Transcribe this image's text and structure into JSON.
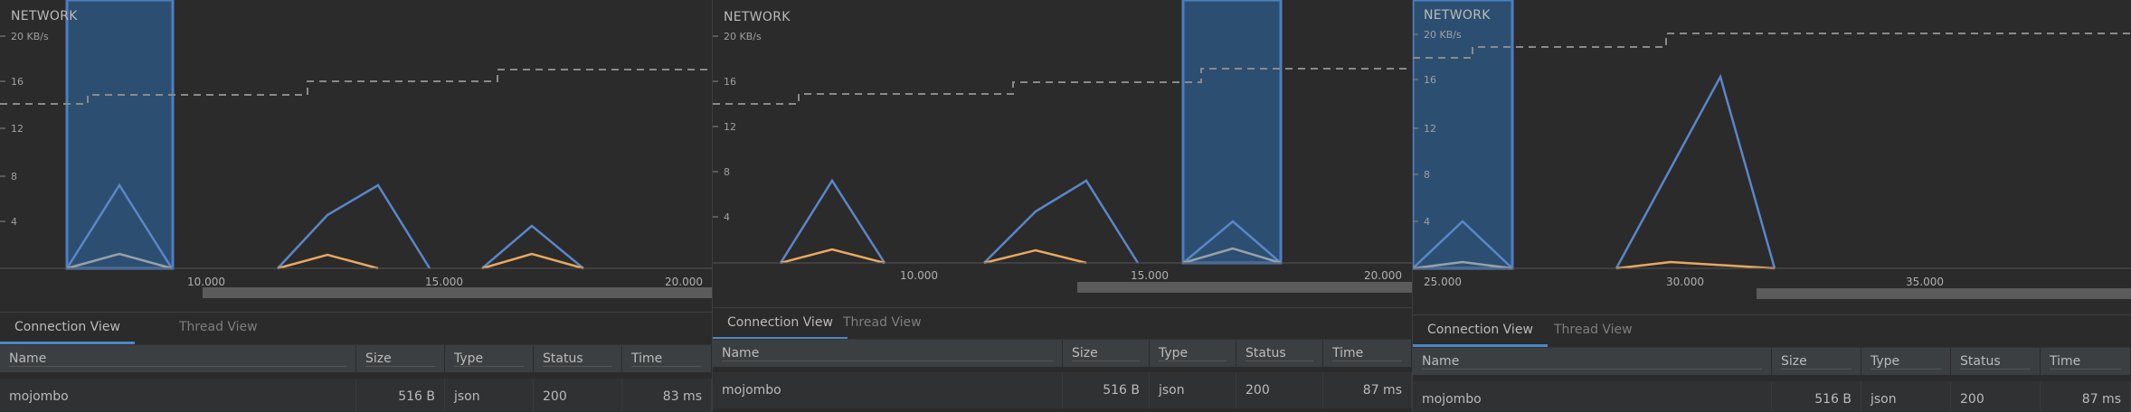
{
  "panels": [
    {
      "title": "NETWORK",
      "y_unit_label": "20 KB/s",
      "y_ticks": [
        "16",
        "12",
        "8",
        "4"
      ],
      "x_ticks": [
        "10.000",
        "15.000",
        "20.000"
      ],
      "tabs": [
        {
          "label": "Connection View",
          "active": true
        },
        {
          "label": "Thread View",
          "active": false
        }
      ],
      "columns": [
        "Name",
        "Size",
        "Type",
        "Status",
        "Time"
      ],
      "rows": [
        {
          "name": "mojombo",
          "size": "516 B",
          "type": "json",
          "status": "200",
          "time": "83 ms"
        }
      ]
    },
    {
      "title": "NETWORK",
      "y_unit_label": "20 KB/s",
      "y_ticks": [
        "16",
        "12",
        "8",
        "4"
      ],
      "x_ticks": [
        "10.000",
        "15.000",
        "20.000"
      ],
      "tabs": [
        {
          "label": "Connection View",
          "active": true
        },
        {
          "label": "Thread View",
          "active": false
        }
      ],
      "columns": [
        "Name",
        "Size",
        "Type",
        "Status",
        "Time"
      ],
      "rows": [
        {
          "name": "mojombo",
          "size": "516 B",
          "type": "json",
          "status": "200",
          "time": "87 ms"
        }
      ]
    },
    {
      "title": "NETWORK",
      "y_unit_label": "20 KB/s",
      "y_ticks": [
        "16",
        "12",
        "8",
        "4"
      ],
      "x_ticks": [
        "25.000",
        "30.000",
        "35.000"
      ],
      "tabs": [
        {
          "label": "Connection View",
          "active": true
        },
        {
          "label": "Thread View",
          "active": false
        }
      ],
      "columns": [
        "Name",
        "Size",
        "Type",
        "Status",
        "Time"
      ],
      "rows": [
        {
          "name": "mojombo",
          "size": "516 B",
          "type": "json",
          "status": "200",
          "time": "87 ms"
        }
      ]
    }
  ],
  "colors": {
    "received": "#5a86c9",
    "sent": "#e8a860",
    "connections": "#9aa0a8",
    "selection_fill": "#2e5c8a",
    "selection_border": "#4b7fc1",
    "dashed_line": "#8a8a8a",
    "tab_active": "#4a88c7"
  },
  "icons": []
}
